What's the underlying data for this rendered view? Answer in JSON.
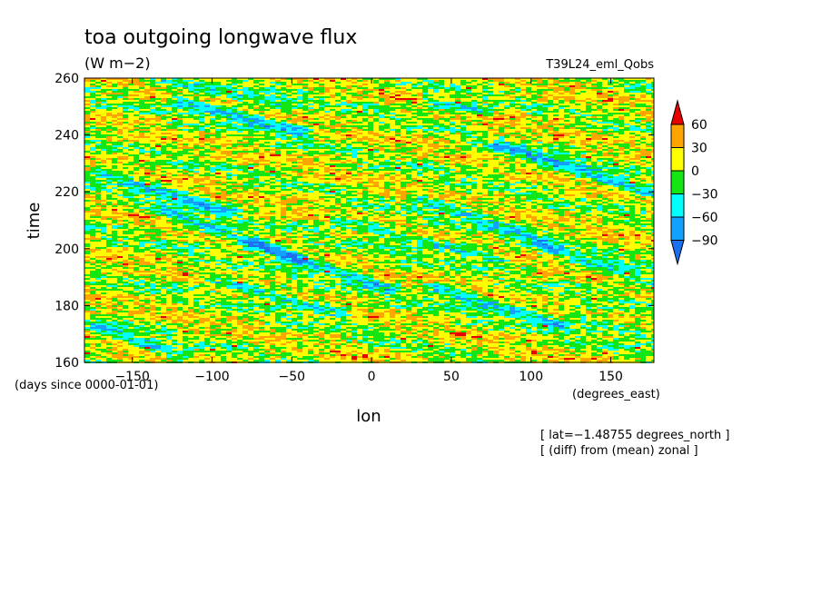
{
  "chart_data": {
    "type": "heatmap",
    "title": "toa outgoing longwave flux",
    "units": "(W m−2)",
    "experiment": "T39L24_eml_Qobs",
    "xlabel": "lon",
    "ylabel": "time",
    "x_units": "(degrees_east)",
    "y_units": "(days since 0000-01-01)",
    "xlim": [
      -180,
      177
    ],
    "ylim": [
      160,
      260
    ],
    "x_ticks": [
      -150,
      -100,
      -50,
      0,
      50,
      100,
      150
    ],
    "y_ticks": [
      160,
      180,
      200,
      220,
      240,
      260
    ],
    "x_tick_labels": [
      "−150",
      "−100",
      "−50",
      "0",
      "50",
      "100",
      "150"
    ],
    "y_tick_labels": [
      "160",
      "180",
      "200",
      "220",
      "240",
      "260"
    ],
    "annotations": [
      "[ lat=−1.48755 degrees_north ]",
      "[ (diff) from (mean) zonal ]"
    ],
    "colorbar": {
      "levels": [
        -90,
        -60,
        -30,
        0,
        30,
        60
      ],
      "level_labels": [
        "−90",
        "−60",
        "−30",
        "0",
        "30",
        "60"
      ],
      "colors": [
        "#1e6ef0",
        "#14a0ff",
        "#00ffff",
        "#14e614",
        "#ffff00",
        "#ffa500",
        "#e60000"
      ],
      "extend": "both"
    },
    "features": [
      {
        "lon0": -120,
        "t0": 252,
        "lon1": -45,
        "t1": 241,
        "strength": 70
      },
      {
        "lon0": -170,
        "t0": 227,
        "lon1": -90,
        "t1": 213,
        "strength": 60
      },
      {
        "lon0": -130,
        "t0": 213,
        "lon1": -45,
        "t1": 196,
        "strength": 70
      },
      {
        "lon0": -75,
        "t0": 202,
        "lon1": 10,
        "t1": 186,
        "strength": 55
      },
      {
        "lon0": -100,
        "t0": 189,
        "lon1": -20,
        "t1": 177,
        "strength": 60
      },
      {
        "lon0": -20,
        "t0": 210,
        "lon1": 80,
        "t1": 196,
        "strength": 55
      },
      {
        "lon0": 40,
        "t0": 186,
        "lon1": 120,
        "t1": 173,
        "strength": 65
      },
      {
        "lon0": 80,
        "t0": 236,
        "lon1": 177,
        "t1": 219,
        "strength": 70
      },
      {
        "lon0": 30,
        "t0": 218,
        "lon1": 110,
        "t1": 202,
        "strength": 50
      },
      {
        "lon0": 35,
        "t0": 252,
        "lon1": 70,
        "t1": 248,
        "strength": 55
      },
      {
        "lon0": -170,
        "t0": 172,
        "lon1": -120,
        "t1": 162,
        "strength": 55
      },
      {
        "lon0": 110,
        "t0": 200,
        "lon1": 177,
        "t1": 188,
        "strength": 50
      },
      {
        "lon0": -140,
        "t0": 260,
        "lon1": -60,
        "t1": 251,
        "strength": 45
      },
      {
        "lon0": 130,
        "t0": 176,
        "lon1": 177,
        "t1": 168,
        "strength": 45
      }
    ]
  }
}
